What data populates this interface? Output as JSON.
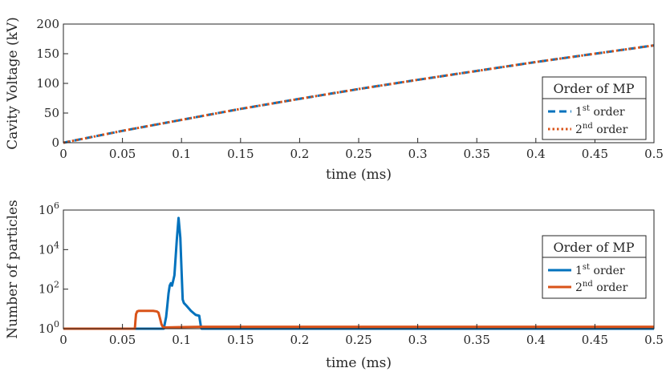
{
  "colors": {
    "series1": "#0072BD",
    "series2": "#D95319",
    "axis": "#262626"
  },
  "chart_data": [
    {
      "type": "line",
      "xlabel": "time (ms)",
      "ylabel": "Cavity Voltage (kV)",
      "xlim": [
        0,
        0.5
      ],
      "ylim": [
        0,
        200
      ],
      "xticks": [
        "0",
        "0.05",
        "0.1",
        "0.15",
        "0.2",
        "0.25",
        "0.3",
        "0.35",
        "0.4",
        "0.45",
        "0.5"
      ],
      "yticks": [
        "0",
        "50",
        "100",
        "150",
        "200"
      ],
      "grid": false,
      "legend_position": "bottom-right",
      "legend_title": "Order of MP",
      "series": [
        {
          "name": "1st order",
          "name_base": "1",
          "name_sup": "st",
          "name_suffix": "order",
          "style": "dashed",
          "x": [
            0,
            0.05,
            0.1,
            0.15,
            0.2,
            0.25,
            0.3,
            0.35,
            0.4,
            0.45,
            0.5
          ],
          "y": [
            0,
            20,
            38.5,
            57,
            74,
            90.5,
            106,
            121,
            136,
            150,
            164
          ]
        },
        {
          "name": "2nd order",
          "name_base": "2",
          "name_sup": "nd",
          "name_suffix": "order",
          "style": "dotted",
          "x": [
            0,
            0.05,
            0.1,
            0.15,
            0.2,
            0.25,
            0.3,
            0.35,
            0.4,
            0.45,
            0.5
          ],
          "y": [
            0,
            20,
            38.5,
            57,
            74,
            90.5,
            106,
            121,
            136,
            150,
            164
          ]
        }
      ]
    },
    {
      "type": "line",
      "xlabel": "time (ms)",
      "ylabel": "Number of particles",
      "xlim": [
        0,
        0.5
      ],
      "ylim": [
        1,
        1000000
      ],
      "yscale": "log",
      "xticks": [
        "0",
        "0.05",
        "0.1",
        "0.15",
        "0.2",
        "0.25",
        "0.3",
        "0.35",
        "0.4",
        "0.45",
        "0.5"
      ],
      "yticks": [
        {
          "base": "10",
          "exp": "0"
        },
        {
          "base": "10",
          "exp": "2"
        },
        {
          "base": "10",
          "exp": "4"
        },
        {
          "base": "10",
          "exp": "6"
        }
      ],
      "grid": false,
      "legend_position": "right",
      "legend_title": "Order of MP",
      "series": [
        {
          "name": "1st order",
          "name_base": "1",
          "name_sup": "st",
          "name_suffix": "order",
          "style": "solid",
          "x": [
            0,
            0.085,
            0.087,
            0.088,
            0.089,
            0.09,
            0.091,
            0.092,
            0.094,
            0.096,
            0.0975,
            0.099,
            0.1,
            0.101,
            0.102,
            0.104,
            0.108,
            0.112,
            0.115,
            0.1165,
            0.117,
            0.3,
            0.5
          ],
          "y": [
            1,
            1,
            4,
            15,
            60,
            150,
            200,
            150,
            500,
            30000,
            400000,
            40000,
            1000,
            30,
            20,
            15,
            8,
            5,
            4.5,
            1.2,
            1,
            1,
            1
          ]
        },
        {
          "name": "2nd order",
          "name_base": "2",
          "name_sup": "nd",
          "name_suffix": "order",
          "style": "solid",
          "x": [
            0,
            0.0605,
            0.061,
            0.0615,
            0.0625,
            0.064,
            0.07,
            0.076,
            0.079,
            0.0805,
            0.082,
            0.083,
            0.084,
            0.085,
            0.1,
            0.117,
            0.3,
            0.5
          ],
          "y": [
            1,
            1,
            2.5,
            5.5,
            7.5,
            8,
            8,
            8,
            7.5,
            6.5,
            3,
            1.7,
            1.3,
            1.15,
            1.2,
            1.25,
            1.25,
            1.25
          ]
        }
      ]
    }
  ]
}
